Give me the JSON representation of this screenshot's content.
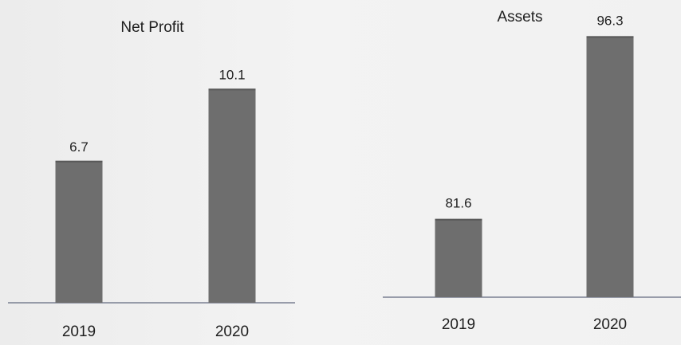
{
  "chart_data": [
    {
      "type": "bar",
      "title": "Net Profit",
      "categories": [
        "2019",
        "2020"
      ],
      "values": [
        6.7,
        10.1
      ],
      "xlabel": "",
      "ylabel": "",
      "ylim": [
        0,
        10.1
      ],
      "grid": false,
      "bar_color": "#6e6e6e"
    },
    {
      "type": "bar",
      "title": "Assets",
      "categories": [
        "2019",
        "2020"
      ],
      "values": [
        81.6,
        96.3
      ],
      "xlabel": "",
      "ylabel": "",
      "ylim": [
        50,
        96.3
      ],
      "grid": false,
      "bar_color": "#6e6e6e"
    }
  ]
}
